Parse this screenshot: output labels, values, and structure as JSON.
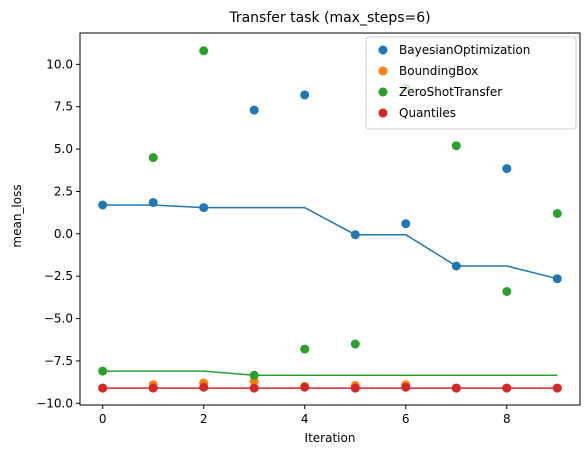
{
  "chart_data": {
    "type": "scatter",
    "title": "Transfer task (max_steps=6)",
    "xlabel": "Iteration",
    "ylabel": "mean_loss",
    "xlim": [
      -0.45,
      9.45
    ],
    "ylim": [
      -10.1,
      11.85
    ],
    "x_ticks": [
      0,
      2,
      4,
      6,
      8
    ],
    "x_tick_labels": [
      "0",
      "2",
      "4",
      "6",
      "8"
    ],
    "y_ticks": [
      -10,
      -7.5,
      -5,
      -2.5,
      0,
      2.5,
      5,
      7.5,
      10
    ],
    "y_tick_labels": [
      "−10.0",
      "−7.5",
      "−5.0",
      "−2.5",
      "0.0",
      "2.5",
      "5.0",
      "7.5",
      "10.0"
    ],
    "grid": false,
    "legend_position": "top-right",
    "x": [
      0,
      1,
      2,
      3,
      4,
      5,
      6,
      7,
      8,
      9
    ],
    "series": [
      {
        "name": "BayesianOptimization",
        "color": "#1f77b4",
        "points": [
          1.7,
          1.85,
          1.55,
          7.3,
          8.2,
          -0.05,
          0.6,
          -1.9,
          3.85,
          -2.65
        ],
        "running_min": [
          1.7,
          1.7,
          1.55,
          1.55,
          1.55,
          -0.05,
          -0.05,
          -1.9,
          -1.9,
          -2.65
        ]
      },
      {
        "name": "BoundingBox",
        "color": "#ff7f0e",
        "points": [
          -9.1,
          -8.9,
          -8.8,
          -8.7,
          -9.0,
          -8.95,
          -8.9,
          -9.1,
          -9.1,
          -9.1
        ],
        "running_min": []
      },
      {
        "name": "ZeroShotTransfer",
        "color": "#2ca02c",
        "points": [
          -8.1,
          4.5,
          10.8,
          -8.35,
          -6.8,
          -6.5,
          8.6,
          5.2,
          -3.4,
          1.2
        ],
        "running_min": [
          -8.1,
          -8.1,
          -8.1,
          -8.35,
          -8.35,
          -8.35,
          -8.35,
          -8.35,
          -8.35,
          -8.35
        ]
      },
      {
        "name": "Quantiles",
        "color": "#d62728",
        "points": [
          -9.1,
          -9.1,
          -9.05,
          -9.1,
          -9.05,
          -9.1,
          -9.05,
          -9.1,
          -9.1,
          -9.1
        ],
        "running_min": [
          -9.1,
          -9.1,
          -9.1,
          -9.1,
          -9.1,
          -9.1,
          -9.1,
          -9.1,
          -9.1,
          -9.1
        ]
      }
    ]
  }
}
